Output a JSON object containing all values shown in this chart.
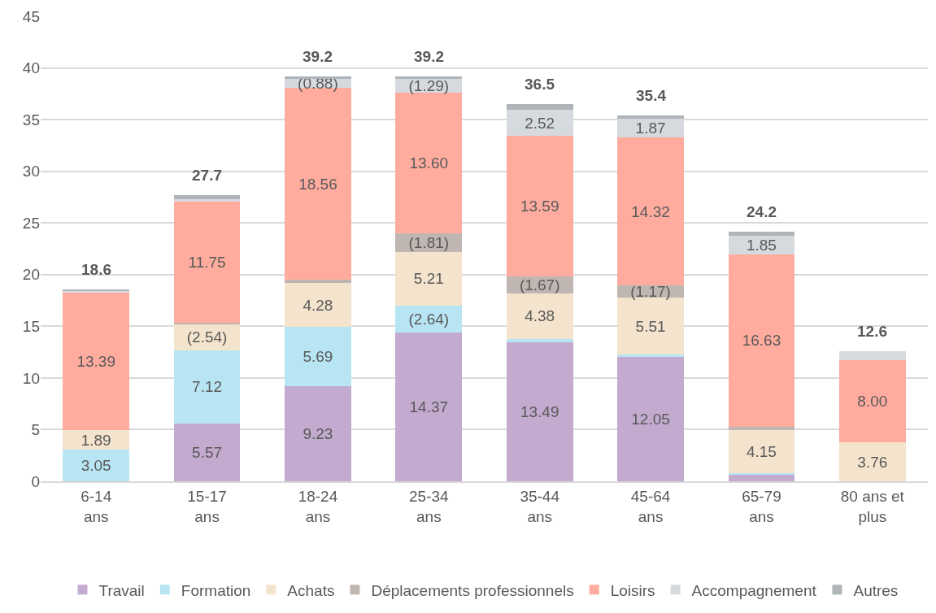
{
  "chart_data": {
    "type": "bar",
    "stacked": true,
    "categories": [
      "6-14\nans",
      "15-17\nans",
      "18-24\nans",
      "25-34\nans",
      "35-44\nans",
      "45-64\nans",
      "65-79\nans",
      "80 ans et\nplus"
    ],
    "series": [
      {
        "name": "Travail",
        "color": "#c3aacf",
        "values": [
          0,
          5.57,
          9.23,
          14.37,
          13.49,
          12.05,
          0.6,
          0
        ],
        "value_labels": [
          null,
          "5.57",
          "9.23",
          "14.37",
          "13.49",
          "12.05",
          null,
          null
        ]
      },
      {
        "name": "Formation",
        "color": "#b8e5f3",
        "values": [
          3.05,
          7.12,
          5.69,
          2.64,
          0.3,
          0.2,
          0.2,
          0
        ],
        "value_labels": [
          "3.05",
          "7.12",
          "5.69",
          "(2.64)",
          null,
          null,
          null,
          null
        ]
      },
      {
        "name": "Achats",
        "color": "#f4e4cd",
        "values": [
          1.89,
          2.54,
          4.28,
          5.21,
          4.38,
          5.51,
          4.15,
          3.76
        ],
        "value_labels": [
          "1.89",
          "(2.54)",
          "4.28",
          "5.21",
          "4.38",
          "5.51",
          "4.15",
          "3.76"
        ]
      },
      {
        "name": "Déplacements professionnels",
        "color": "#c0b6b1",
        "values": [
          0,
          0.1,
          0.3,
          1.81,
          1.67,
          1.17,
          0.35,
          0
        ],
        "value_labels": [
          null,
          null,
          null,
          "(1.81)",
          "(1.67)",
          "(1.17)",
          null,
          null
        ]
      },
      {
        "name": "Loisirs",
        "color": "#ffac9f",
        "values": [
          13.39,
          11.75,
          18.56,
          13.6,
          13.59,
          14.32,
          16.63,
          8.0
        ],
        "value_labels": [
          "13.39",
          "11.75",
          "18.56",
          "13.60",
          "13.59",
          "14.32",
          "16.63",
          "8.00"
        ]
      },
      {
        "name": "Accompagnement",
        "color": "#d6dade",
        "values": [
          0.15,
          0.2,
          0.88,
          1.29,
          2.52,
          1.87,
          1.85,
          0.8
        ],
        "value_labels": [
          null,
          null,
          "(0.88)",
          "(1.29)",
          "2.52",
          "1.87",
          "1.85",
          null
        ]
      },
      {
        "name": "Autres",
        "color": "#aeb4b8",
        "values": [
          0.1,
          0.4,
          0.25,
          0.25,
          0.55,
          0.25,
          0.4,
          0
        ],
        "value_labels": [
          null,
          null,
          null,
          null,
          null,
          null,
          null,
          null
        ]
      }
    ],
    "totals": [
      "18.6",
      "27.7",
      "39.2",
      "39.2",
      "36.5",
      "35.4",
      "24.2",
      "12.6"
    ],
    "ylim": [
      0,
      45
    ],
    "yticks": [
      0,
      5,
      10,
      15,
      20,
      25,
      30,
      35,
      40,
      45
    ],
    "grid": "y",
    "legend": "bottom"
  }
}
